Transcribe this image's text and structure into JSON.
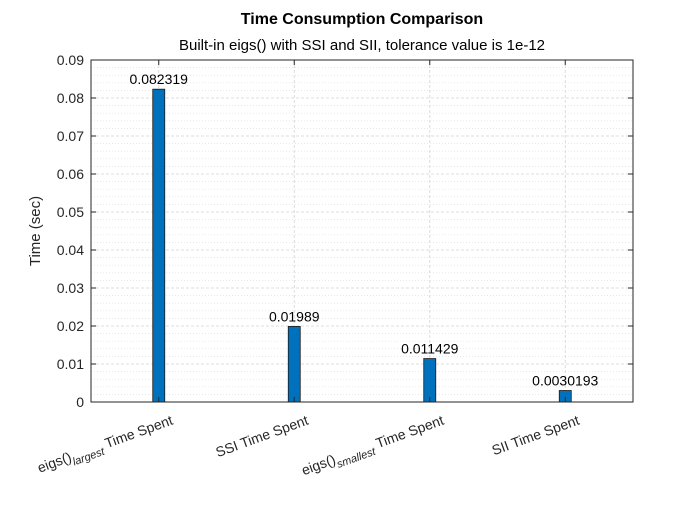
{
  "chart_data": {
    "type": "bar",
    "title": "Time Consumption Comparison",
    "subtitle": "Built-in eigs() with SSI and SII, tolerance value is 1e-12",
    "xlabel": "",
    "ylabel": "Time (sec)",
    "ylim": [
      0,
      0.09
    ],
    "yticks": [
      "0",
      "0.01",
      "0.02",
      "0.03",
      "0.04",
      "0.05",
      "0.06",
      "0.07",
      "0.08",
      "0.09"
    ],
    "grid": true,
    "minor_grid": true,
    "categories": [
      {
        "main": "eigs()",
        "sub": "largest",
        "rest": " Time Spent"
      },
      {
        "main": "SSI Time Spent",
        "sub": "",
        "rest": ""
      },
      {
        "main": "eigs()",
        "sub": "smallest",
        "rest": " Time Spent"
      },
      {
        "main": "SII Time Spent",
        "sub": "",
        "rest": ""
      }
    ],
    "values": [
      0.082319,
      0.01989,
      0.011429,
      0.0030193
    ],
    "data_labels": [
      "0.082319",
      "0.01989",
      "0.011429",
      "0.0030193"
    ],
    "bar_color": "#0072BD"
  }
}
